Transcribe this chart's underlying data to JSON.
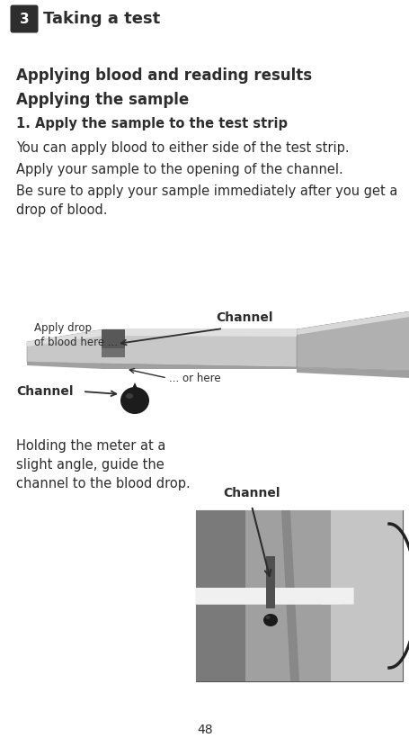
{
  "bg_color": "#ffffff",
  "text_color": "#2d2d2d",
  "page_number": "48",
  "header_box_color": "#2d2d2d",
  "header_text": "Taking a test",
  "header_number": "3",
  "section_title": "Applying blood and reading results",
  "subsection_title": "Applying the sample",
  "step_title": "1. Apply the sample to the test strip",
  "para1": "You can apply blood to either side of the test strip.",
  "para2": "Apply your sample to the opening of the channel.",
  "para3": "Be sure to apply your sample immediately after you get a\ndrop of blood.",
  "bottom_text1": "Holding the meter at a\nslight angle, guide the\nchannel to the blood drop.",
  "fig1_label_top": "Channel",
  "fig1_label_apply": "Apply drop\nof blood here ...",
  "fig1_label_or": "... or here",
  "fig1_label_channel": "Channel",
  "fig2_label_channel": "Channel",
  "strip_body_color": "#c8c8c8",
  "strip_highlight_color": "#e0e0e0",
  "strip_shadow_color": "#a0a0a0",
  "strip_dark_color": "#606060",
  "connector_color": "#b0b0b0",
  "connector_light_color": "#d0d0d0",
  "drop_color": "#1c1c1c",
  "photo_bg": "#9a9a9a",
  "photo_dark": "#707070",
  "photo_light": "#c0c0c0",
  "photo_strip_color": "#606060",
  "photo_white": "#f0f0f0"
}
